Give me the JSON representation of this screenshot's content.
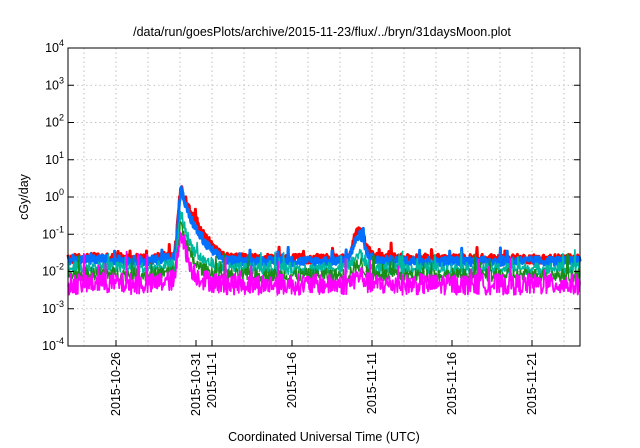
{
  "chart_data": {
    "type": "line",
    "title": "/data/run/goesPlots/archive/2015-11-23/flux/../bryn/31daysMoon.plot",
    "xlabel": "Coordinated Universal Time (UTC)",
    "ylabel": "cGy/day",
    "yscale": "log",
    "ylim": [
      0.0001,
      10000
    ],
    "xlim": [
      "2015-10-23",
      "2015-11-24"
    ],
    "grid": true,
    "legend": "none",
    "y_ticks": [
      {
        "value": 0.0001,
        "base": "10",
        "exp": "-4"
      },
      {
        "value": 0.001,
        "base": "10",
        "exp": "-3"
      },
      {
        "value": 0.01,
        "base": "10",
        "exp": "-2"
      },
      {
        "value": 0.1,
        "base": "10",
        "exp": "-1"
      },
      {
        "value": 1,
        "base": "10",
        "exp": "0"
      },
      {
        "value": 10,
        "base": "10",
        "exp": "1"
      },
      {
        "value": 100,
        "base": "10",
        "exp": "2"
      },
      {
        "value": 1000,
        "base": "10",
        "exp": "3"
      },
      {
        "value": 10000,
        "base": "10",
        "exp": "4"
      }
    ],
    "x_ticks": [
      "2015-10-26",
      "2015-10-31",
      "2015-11-1",
      "2015-11-6",
      "2015-11-11",
      "2015-11-16",
      "2015-11-21"
    ],
    "x_tick_days": [
      3,
      8,
      9,
      14,
      19,
      24,
      29
    ],
    "series": [
      {
        "color": "#ff0000",
        "x": [
          0,
          2,
          5,
          6.7,
          7.05,
          7.3,
          7.6,
          8.0,
          8.5,
          9.2,
          10,
          13,
          16,
          17.5,
          18.0,
          18.3,
          18.7,
          19.2,
          21,
          24,
          27,
          30,
          32
        ],
        "y": [
          0.022,
          0.024,
          0.022,
          0.03,
          2.1,
          0.9,
          0.45,
          0.2,
          0.09,
          0.04,
          0.023,
          0.022,
          0.022,
          0.023,
          0.1,
          0.14,
          0.04,
          0.025,
          0.023,
          0.022,
          0.022,
          0.022,
          0.022
        ]
      },
      {
        "color": "#0070ff",
        "x": [
          0,
          2,
          5,
          6.7,
          7.05,
          7.3,
          7.6,
          8.0,
          8.5,
          9.2,
          10,
          13,
          16,
          17.5,
          18.0,
          18.3,
          18.7,
          19.2,
          21,
          24,
          27,
          30,
          32
        ],
        "y": [
          0.019,
          0.021,
          0.019,
          0.025,
          1.6,
          0.7,
          0.3,
          0.14,
          0.06,
          0.03,
          0.019,
          0.019,
          0.019,
          0.02,
          0.07,
          0.1,
          0.03,
          0.02,
          0.019,
          0.019,
          0.019,
          0.019,
          0.019
        ]
      },
      {
        "color": "#00b8a0",
        "x": [
          0,
          2,
          5,
          6.7,
          7.05,
          7.3,
          7.6,
          8.0,
          8.5,
          9.2,
          10,
          13,
          16,
          17.5,
          18.0,
          18.3,
          18.7,
          19.2,
          21,
          24,
          27,
          30,
          32
        ],
        "y": [
          0.012,
          0.013,
          0.012,
          0.015,
          0.4,
          0.15,
          0.06,
          0.03,
          0.02,
          0.015,
          0.012,
          0.012,
          0.012,
          0.012,
          0.025,
          0.03,
          0.015,
          0.012,
          0.012,
          0.012,
          0.012,
          0.012,
          0.012
        ]
      },
      {
        "color": "#1a8c1a",
        "x": [
          0,
          2,
          5,
          6.7,
          7.05,
          7.3,
          7.6,
          8.0,
          8.5,
          9.2,
          10,
          13,
          16,
          17.5,
          18.0,
          18.3,
          18.7,
          19.2,
          21,
          24,
          27,
          30,
          32
        ],
        "y": [
          0.008,
          0.009,
          0.008,
          0.01,
          0.2,
          0.08,
          0.03,
          0.015,
          0.011,
          0.009,
          0.008,
          0.008,
          0.008,
          0.008,
          0.014,
          0.016,
          0.009,
          0.008,
          0.008,
          0.008,
          0.008,
          0.008,
          0.008
        ]
      },
      {
        "color": "#ff00ff",
        "x": [
          0,
          2,
          5,
          6.7,
          7.05,
          7.3,
          7.6,
          8.0,
          8.5,
          9.2,
          10,
          13,
          16,
          17.5,
          18.0,
          18.3,
          18.7,
          19.2,
          21,
          24,
          27,
          30,
          32
        ],
        "y": [
          0.0045,
          0.005,
          0.0045,
          0.006,
          0.14,
          0.05,
          0.015,
          0.008,
          0.006,
          0.005,
          0.0045,
          0.0045,
          0.0045,
          0.0045,
          0.007,
          0.008,
          0.005,
          0.0045,
          0.0045,
          0.0045,
          0.0045,
          0.0045,
          0.0045
        ]
      }
    ]
  }
}
